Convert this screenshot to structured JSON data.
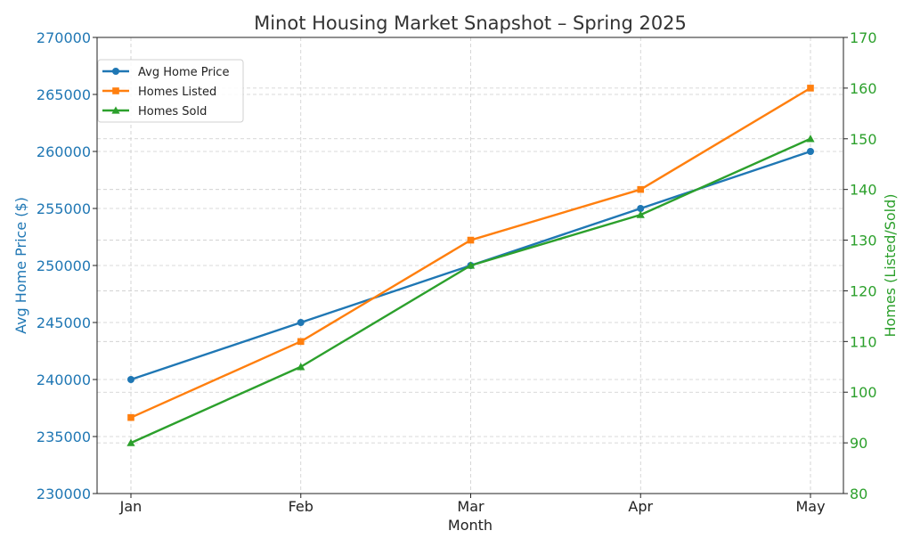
{
  "chart_data": {
    "type": "line",
    "title": "Minot Housing Market Snapshot – Spring 2025",
    "xlabel": "Month",
    "ylabel_left": "Avg Home Price ($)",
    "ylabel_right": "Homes (Listed/Sold)",
    "categories": [
      "Jan",
      "Feb",
      "Mar",
      "Apr",
      "May"
    ],
    "ylim_left": [
      230000,
      270000
    ],
    "ylim_right": [
      80,
      170
    ],
    "yticks_left": [
      "230000",
      "235000",
      "240000",
      "245000",
      "250000",
      "255000",
      "260000",
      "265000",
      "270000"
    ],
    "yticks_right": [
      "80",
      "90",
      "100",
      "110",
      "120",
      "130",
      "140",
      "150",
      "160",
      "170"
    ],
    "grid": true,
    "legend_position": "upper-left",
    "series": [
      {
        "name": "Avg Home Price",
        "axis": "left",
        "color": "#1f77b4",
        "marker": "circle",
        "values": [
          240000,
          245000,
          250000,
          255000,
          260000
        ]
      },
      {
        "name": "Homes Listed",
        "axis": "right",
        "color": "#ff7f0e",
        "marker": "square",
        "values": [
          95,
          110,
          130,
          140,
          160
        ]
      },
      {
        "name": "Homes Sold",
        "axis": "right",
        "color": "#2ca02c",
        "marker": "triangle",
        "values": [
          90,
          105,
          125,
          135,
          150
        ]
      }
    ]
  }
}
